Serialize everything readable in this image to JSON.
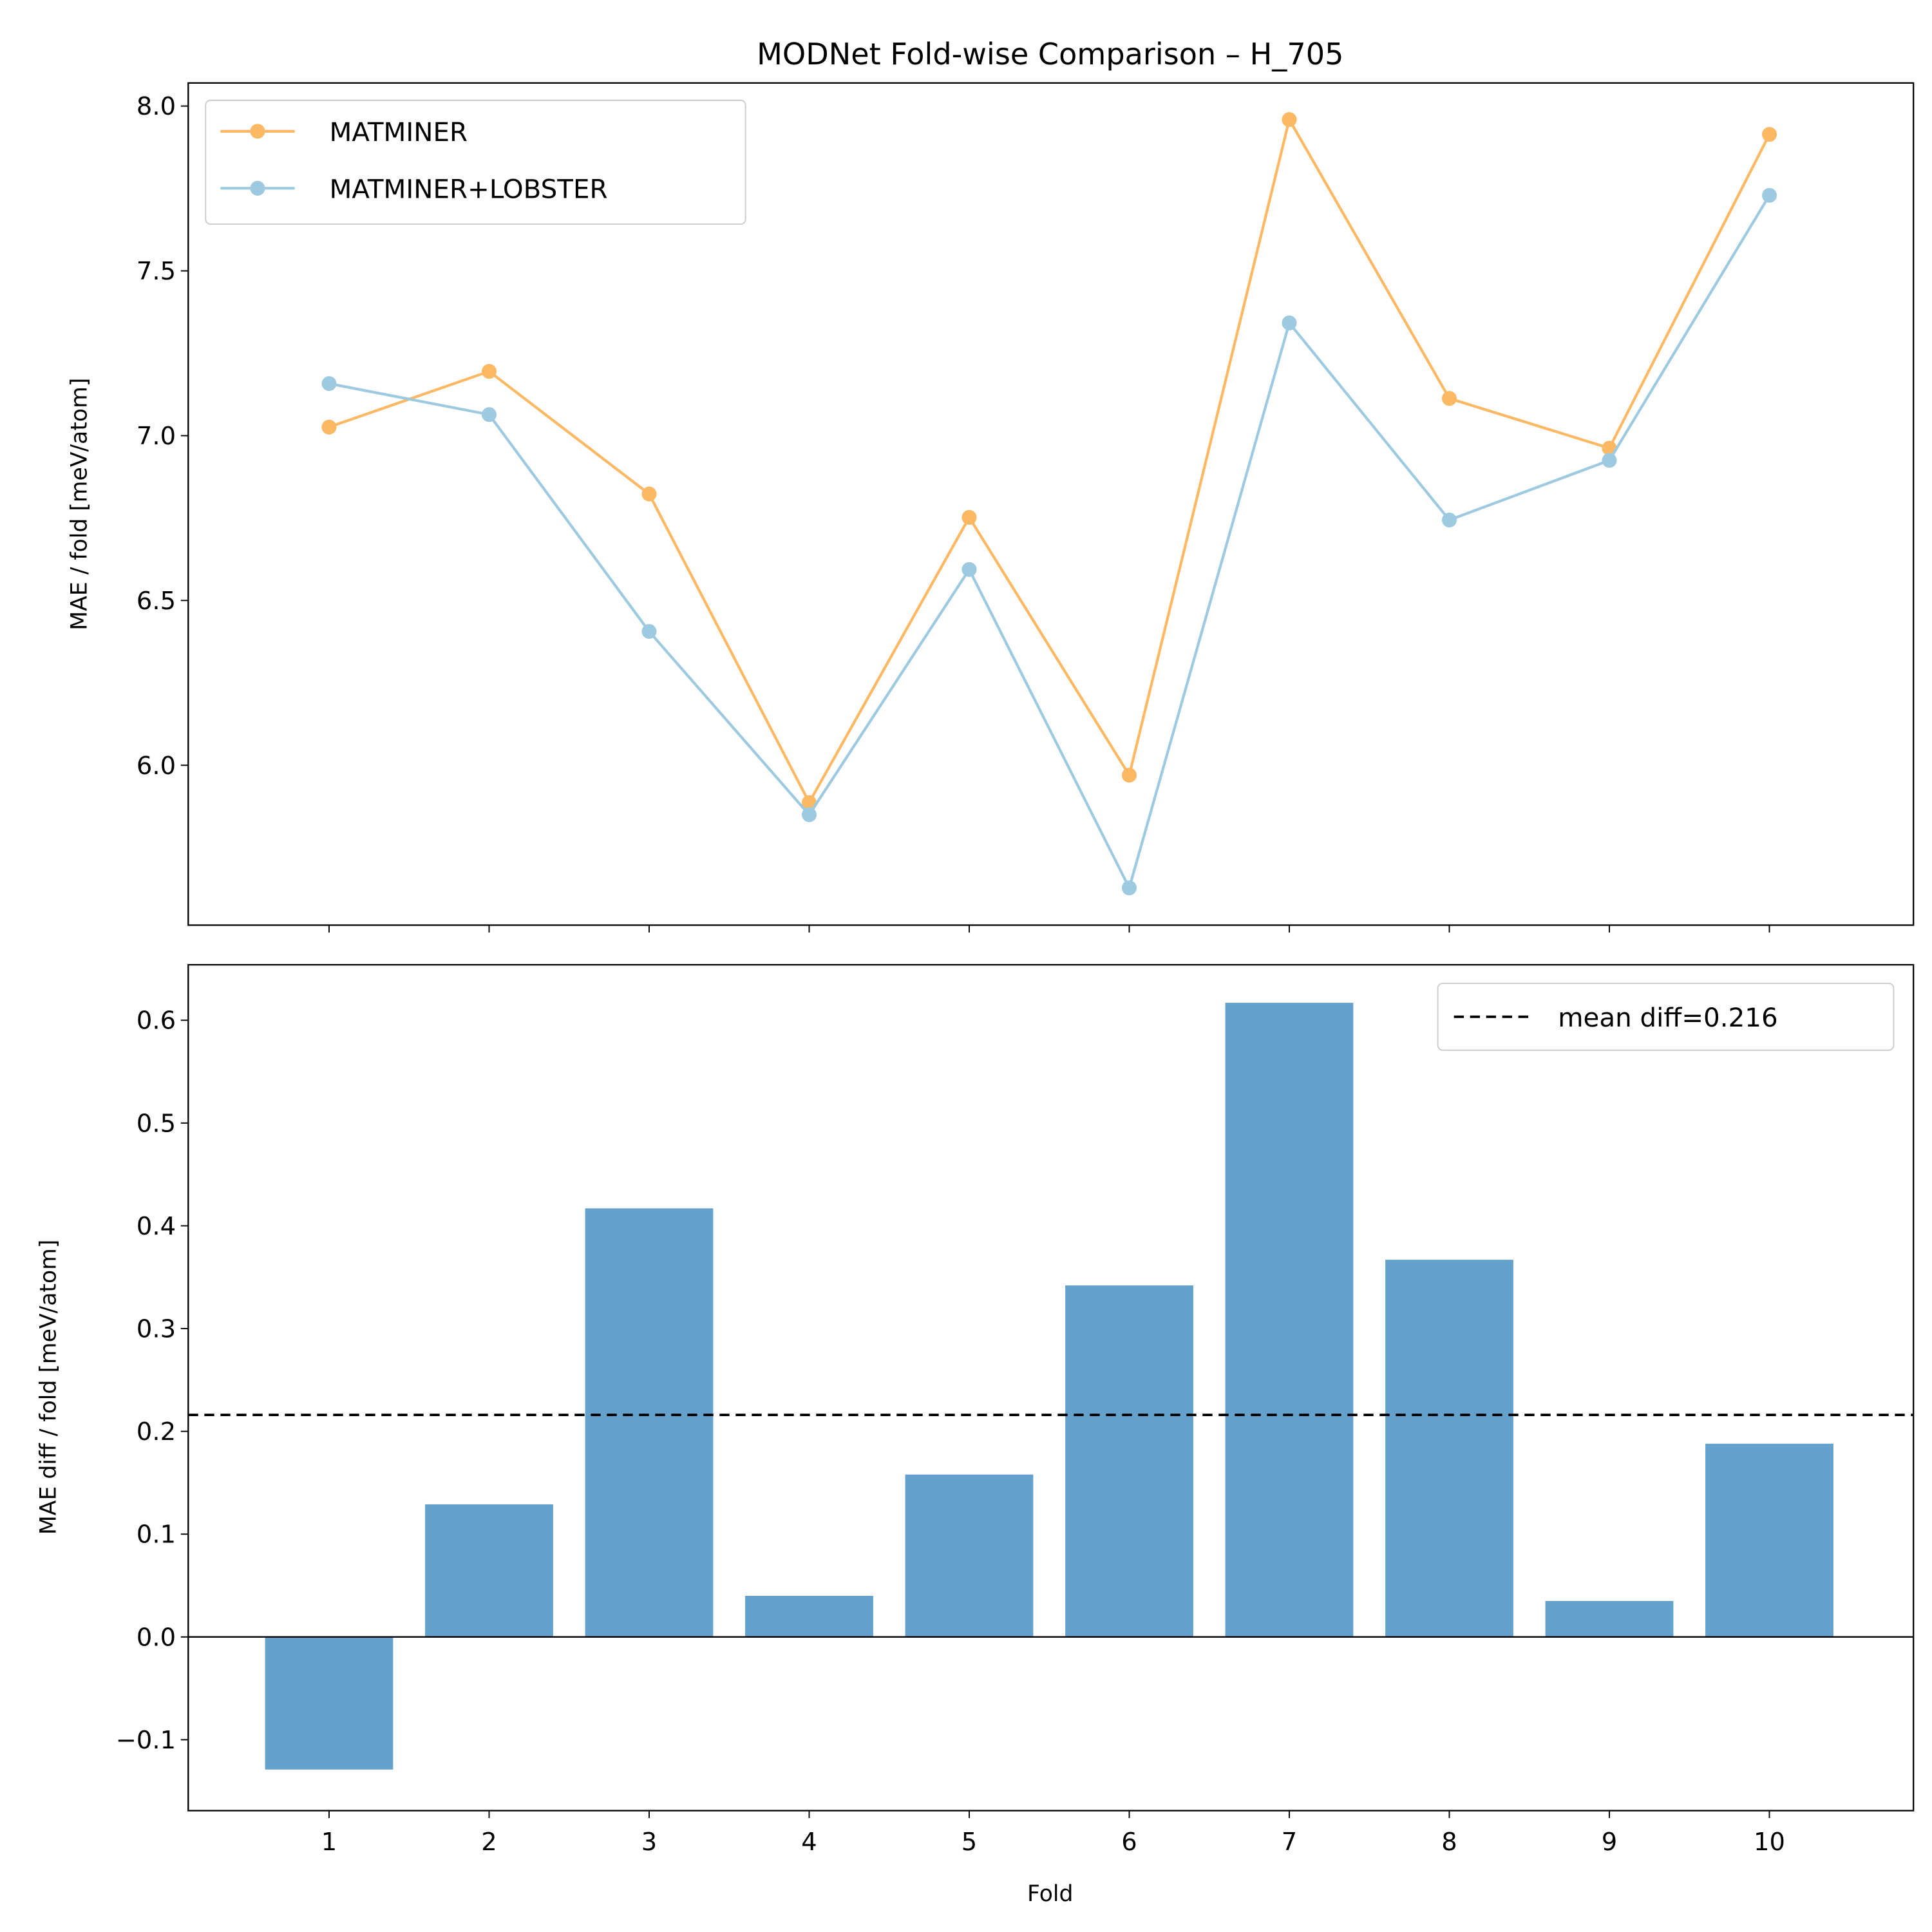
{
  "chart_data": [
    {
      "type": "line",
      "title": "MODNet Fold-wise Comparison – H_705",
      "xlabel": "",
      "ylabel": "MAE / fold [meV/atom]",
      "x": [
        1,
        2,
        3,
        4,
        5,
        6,
        7,
        8,
        9,
        10
      ],
      "xlim": [
        0.12,
        10.9
      ],
      "ylim": [
        5.515,
        8.07
      ],
      "yticks": [
        6.0,
        6.5,
        7.0,
        7.5,
        8.0
      ],
      "ytick_labels": [
        "6.0",
        "6.5",
        "7.0",
        "7.5",
        "8.0"
      ],
      "legend_position": "upper-left",
      "grid": false,
      "series": [
        {
          "name": "MATMINER",
          "color": "#fdb863",
          "values": [
            7.026,
            7.195,
            6.823,
            5.887,
            6.752,
            5.97,
            7.959,
            7.113,
            6.962,
            7.914
          ]
        },
        {
          "name": "MATMINER+LOBSTER",
          "color": "#9ecae1",
          "values": [
            7.158,
            7.064,
            6.406,
            5.85,
            6.594,
            5.628,
            7.342,
            6.744,
            6.925,
            7.729
          ]
        }
      ]
    },
    {
      "type": "bar",
      "xlabel": "Fold",
      "ylabel": "MAE diff / fold [meV/atom]",
      "categories": [
        "1",
        "2",
        "3",
        "4",
        "5",
        "6",
        "7",
        "8",
        "9",
        "10"
      ],
      "values": [
        -0.129,
        0.129,
        0.417,
        0.04,
        0.158,
        0.342,
        0.617,
        0.367,
        0.035,
        0.188
      ],
      "bar_color": "#4a90c4",
      "xlim": [
        0.12,
        10.9
      ],
      "ylim": [
        -0.169,
        0.654
      ],
      "yticks": [
        -0.1,
        0.0,
        0.1,
        0.2,
        0.3,
        0.4,
        0.5,
        0.6
      ],
      "ytick_labels": [
        "−0.1",
        "0.0",
        "0.1",
        "0.2",
        "0.3",
        "0.4",
        "0.5",
        "0.6"
      ],
      "mean_line": {
        "value": 0.216,
        "label": "mean diff=0.216",
        "style": "dashed",
        "color": "#000000"
      },
      "zero_line": true,
      "legend_position": "upper-right",
      "grid": false
    }
  ]
}
